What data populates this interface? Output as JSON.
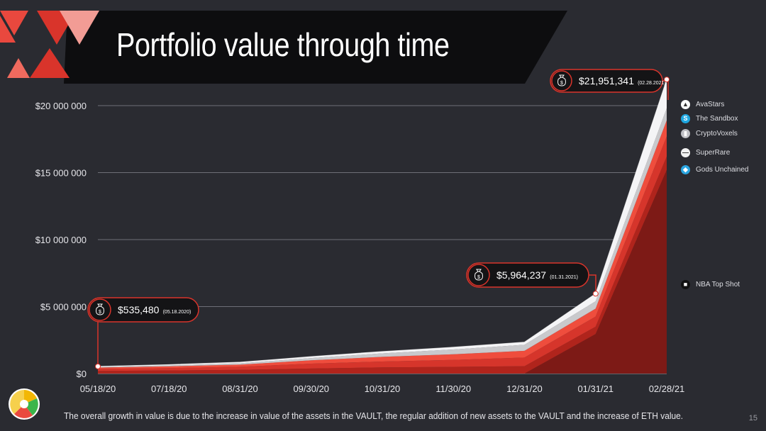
{
  "title": "Portfolio value through time",
  "footer": "The overall growth in value is due to the increase in value of the assets in the VAULT, the regular addition of new assets to the VAULT and the increase of ETH value.",
  "page_number": "15",
  "legend": [
    {
      "label": "AvaStars",
      "icon": "avastars-icon",
      "color": "#ffffff"
    },
    {
      "label": "The Sandbox",
      "icon": "sandbox-icon",
      "color": "#1ea7e1"
    },
    {
      "label": "CryptoVoxels",
      "icon": "cryptovoxels-icon",
      "color": "#bfc0c5"
    },
    {
      "label": "SuperRare",
      "icon": "superrare-icon",
      "color": "#f2f2f2"
    },
    {
      "label": "Gods Unchained",
      "icon": "gods-unchained-icon",
      "color": "#2aa5e0"
    },
    {
      "label": "NBA Top Shot",
      "icon": "nba-top-shot-icon",
      "color": "#111111"
    }
  ],
  "annotations": [
    {
      "value": "$535,480",
      "date": "(05.18.2020)"
    },
    {
      "value": "$5,964,237",
      "date": "(01.31.2021)"
    },
    {
      "value": "$21,951,341",
      "date": "(02.28.2021)"
    }
  ],
  "colors": {
    "background": "#2a2b31",
    "banner": "#0d0d0f",
    "accent": "#d9342b"
  },
  "chart_data": {
    "type": "area",
    "stacked": true,
    "x": [
      "05/18/20",
      "07/18/20",
      "08/31/20",
      "09/30/20",
      "10/31/20",
      "11/30/20",
      "12/31/20",
      "01/31/21",
      "02/28/21"
    ],
    "yticks": [
      "$0",
      "$5 000 000",
      "$10 000 000",
      "$15 000 000",
      "$20 000 000"
    ],
    "ylim": [
      0,
      22000000
    ],
    "grid": true,
    "legend_position": "right",
    "series": [
      {
        "name": "NBA Top Shot",
        "color": "#7d1a16",
        "values": [
          0,
          0,
          0,
          0,
          0,
          0,
          0,
          2950000,
          15200000
        ]
      },
      {
        "name": "Gods Unchained",
        "color": "#b0241c",
        "values": [
          200000,
          230000,
          280000,
          380000,
          460000,
          500000,
          550000,
          550000,
          1000000
        ]
      },
      {
        "name": "SuperRare",
        "color": "#d6352b",
        "values": [
          150000,
          180000,
          230000,
          360000,
          440000,
          520000,
          650000,
          750000,
          1500000
        ]
      },
      {
        "name": "CryptoVoxels",
        "color": "#ef4d3d",
        "values": [
          100000,
          130000,
          160000,
          250000,
          350000,
          420000,
          500000,
          600000,
          1200000
        ]
      },
      {
        "name": "The Sandbox",
        "color": "#c9c9cc",
        "values": [
          45000,
          70000,
          100000,
          170000,
          260000,
          360000,
          450000,
          550000,
          900000
        ]
      },
      {
        "name": "AvaStars",
        "color": "#f4f4f6",
        "values": [
          40480,
          60000,
          80000,
          110000,
          140000,
          170000,
          200000,
          564237,
          2151341
        ]
      }
    ]
  }
}
